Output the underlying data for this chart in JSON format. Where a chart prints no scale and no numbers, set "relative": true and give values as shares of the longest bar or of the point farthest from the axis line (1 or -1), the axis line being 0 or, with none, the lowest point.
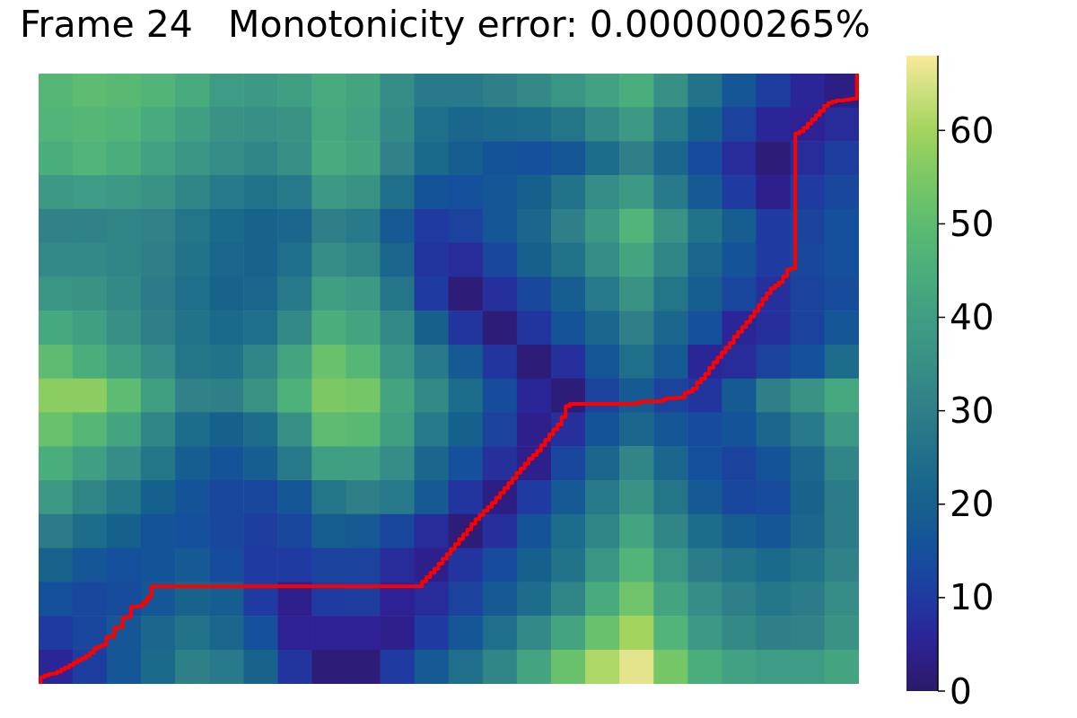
{
  "chart_data": [
    {
      "type": "heatmap",
      "title": "Frame 24   Monotonicity error: 0.000000265%",
      "categories": [
        null,
        null,
        null,
        null,
        null,
        null,
        null,
        null,
        null,
        null,
        null,
        null,
        null,
        null,
        null,
        null,
        null,
        null,
        null,
        null,
        null,
        null,
        null,
        null
      ],
      "y_categories": [
        null,
        null,
        null,
        null,
        null,
        null,
        null,
        null,
        null,
        null,
        null,
        null,
        null,
        null,
        null,
        null,
        null,
        null
      ],
      "cells": [
        [
          48,
          50,
          49,
          47,
          44,
          39,
          38,
          40,
          44,
          42,
          34,
          28,
          28,
          30,
          33,
          37,
          41,
          45,
          35,
          26,
          17,
          11,
          6,
          3
        ],
        [
          47,
          48,
          47,
          44,
          40,
          36,
          35,
          36,
          43,
          41,
          33,
          25,
          22,
          23,
          24,
          27,
          33,
          38,
          28,
          20,
          12,
          6,
          5,
          7
        ],
        [
          45,
          47,
          45,
          41,
          37,
          34,
          32,
          35,
          44,
          42,
          31,
          23,
          19,
          16,
          15,
          17,
          24,
          30,
          22,
          14,
          7,
          2,
          7,
          11
        ],
        [
          38,
          39,
          38,
          36,
          32,
          28,
          26,
          28,
          38,
          36,
          25,
          16,
          15,
          17,
          20,
          26,
          34,
          38,
          28,
          18,
          10,
          4,
          10,
          13
        ],
        [
          31,
          31,
          32,
          31,
          27,
          23,
          21,
          22,
          30,
          28,
          18,
          10,
          12,
          17,
          22,
          30,
          38,
          47,
          36,
          26,
          19,
          10,
          12,
          15
        ],
        [
          33,
          33,
          32,
          30,
          26,
          22,
          21,
          25,
          34,
          32,
          22,
          9,
          7,
          13,
          20,
          26,
          34,
          42,
          32,
          22,
          16,
          10,
          13,
          15
        ],
        [
          37,
          36,
          33,
          29,
          25,
          21,
          22,
          28,
          40,
          38,
          27,
          10,
          2,
          8,
          13,
          19,
          28,
          36,
          27,
          19,
          13,
          8,
          12,
          14
        ],
        [
          43,
          40,
          35,
          30,
          26,
          23,
          25,
          33,
          45,
          42,
          33,
          20,
          9,
          2,
          9,
          16,
          22,
          30,
          22,
          15,
          6,
          8,
          12,
          17
        ],
        [
          50,
          45,
          40,
          34,
          27,
          26,
          32,
          42,
          52,
          48,
          37,
          28,
          18,
          9,
          2,
          8,
          17,
          25,
          18,
          6,
          7,
          12,
          15,
          24
        ],
        [
          57,
          57,
          50,
          40,
          31,
          30,
          36,
          46,
          55,
          54,
          42,
          33,
          24,
          14,
          6,
          2,
          12,
          18,
          12,
          9,
          18,
          30,
          36,
          43
        ],
        [
          52,
          48,
          42,
          32,
          24,
          20,
          24,
          35,
          50,
          49,
          40,
          28,
          20,
          12,
          4,
          8,
          16,
          22,
          17,
          14,
          16,
          22,
          28,
          38
        ],
        [
          45,
          40,
          34,
          27,
          19,
          16,
          19,
          28,
          40,
          40,
          34,
          22,
          15,
          8,
          4,
          13,
          22,
          32,
          22,
          15,
          12,
          16,
          22,
          32
        ],
        [
          38,
          32,
          27,
          20,
          16,
          13,
          13,
          17,
          27,
          30,
          28,
          18,
          9,
          3,
          10,
          18,
          28,
          36,
          27,
          18,
          13,
          14,
          21,
          29
        ],
        [
          29,
          24,
          20,
          16,
          15,
          13,
          11,
          13,
          19,
          18,
          13,
          7,
          2,
          8,
          16,
          24,
          32,
          42,
          32,
          24,
          19,
          17,
          22,
          29
        ],
        [
          21,
          17,
          15,
          16,
          18,
          14,
          10,
          10,
          12,
          12,
          7,
          4,
          9,
          14,
          20,
          26,
          37,
          47,
          37,
          29,
          26,
          23,
          26,
          31
        ],
        [
          15,
          13,
          14,
          17,
          21,
          19,
          10,
          4,
          10,
          11,
          5,
          7,
          12,
          18,
          24,
          32,
          44,
          53,
          42,
          34,
          30,
          27,
          29,
          34
        ],
        [
          10,
          13,
          17,
          22,
          26,
          22,
          15,
          5,
          5,
          5,
          4,
          10,
          17,
          25,
          33,
          42,
          52,
          60,
          47,
          38,
          33,
          30,
          31,
          36
        ],
        [
          6,
          11,
          17,
          23,
          30,
          28,
          21,
          9,
          2,
          2,
          10,
          18,
          25,
          32,
          42,
          52,
          61,
          66,
          54,
          45,
          41,
          39,
          39,
          42
        ]
      ],
      "clim": [
        0,
        68
      ],
      "cticks": [
        0,
        10,
        20,
        30,
        40,
        50,
        60
      ]
    },
    {
      "type": "step",
      "relative": true,
      "color": "#ff0000",
      "categories": [
        null,
        null,
        null,
        null,
        null,
        null,
        null,
        null,
        null,
        null,
        null,
        null,
        null,
        null,
        null,
        null,
        null,
        null,
        null,
        null,
        null,
        null,
        null,
        null,
        null,
        null,
        null,
        null,
        null,
        null,
        null,
        null,
        null,
        null,
        null,
        null,
        null,
        null,
        null,
        null,
        null,
        null,
        null,
        null,
        null,
        null,
        null,
        null,
        null,
        null,
        null,
        null,
        null,
        null,
        null,
        null,
        null,
        null,
        null,
        null,
        null,
        null,
        null,
        null,
        null,
        null,
        null,
        null,
        null,
        null,
        null,
        null,
        null,
        null,
        null,
        null,
        null,
        null,
        null,
        null,
        null,
        null,
        null,
        null,
        null,
        null,
        null,
        null,
        null,
        null,
        null,
        null,
        null,
        null,
        null,
        null,
        null,
        null,
        null,
        null,
        null,
        null,
        null,
        null,
        null,
        null,
        null,
        null,
        null,
        null,
        null,
        null,
        null,
        null,
        null,
        null,
        null,
        null,
        null,
        null,
        null,
        null,
        null,
        null,
        null,
        null,
        null,
        null,
        null,
        null,
        null,
        null,
        null,
        null,
        null,
        null,
        null,
        null,
        null,
        null,
        null,
        null,
        null,
        null,
        null,
        null,
        null,
        null,
        null,
        null,
        null,
        null,
        null,
        null,
        null,
        null,
        null,
        null,
        null,
        null,
        null,
        null,
        null,
        null,
        null,
        null,
        null,
        null,
        null,
        null,
        null,
        null,
        null,
        null,
        null,
        null,
        null,
        null,
        null,
        null,
        null,
        null,
        null,
        null,
        null,
        null,
        null,
        null,
        null,
        null,
        null,
        null,
        null,
        null,
        null,
        null,
        null,
        null,
        null,
        null,
        null
      ],
      "values": [
        0,
        0.011,
        0.014,
        0.016,
        0.017,
        0.02,
        0.024,
        0.027,
        0.031,
        0.035,
        0.039,
        0.042,
        0.046,
        0.051,
        0.058,
        0.061,
        0.064,
        0.077,
        0.078,
        0.092,
        0.093,
        0.109,
        0.11,
        0.126,
        0.127,
        0.128,
        0.134,
        0.142,
        0.16,
        0.16,
        0.16,
        0.16,
        0.16,
        0.16,
        0.16,
        0.16,
        0.16,
        0.16,
        0.16,
        0.16,
        0.16,
        0.16,
        0.16,
        0.16,
        0.16,
        0.16,
        0.16,
        0.16,
        0.16,
        0.16,
        0.16,
        0.16,
        0.16,
        0.16,
        0.16,
        0.16,
        0.16,
        0.16,
        0.16,
        0.16,
        0.16,
        0.16,
        0.16,
        0.16,
        0.16,
        0.16,
        0.16,
        0.16,
        0.16,
        0.16,
        0.16,
        0.16,
        0.16,
        0.16,
        0.16,
        0.16,
        0.16,
        0.16,
        0.16,
        0.16,
        0.16,
        0.16,
        0.16,
        0.16,
        0.16,
        0.16,
        0.16,
        0.16,
        0.16,
        0.16,
        0.16,
        0.16,
        0.16,
        0.16,
        0.168,
        0.175,
        0.182,
        0.189,
        0.197,
        0.205,
        0.213,
        0.221,
        0.229,
        0.237,
        0.245,
        0.253,
        0.262,
        0.27,
        0.277,
        0.284,
        0.29,
        0.297,
        0.305,
        0.313,
        0.321,
        0.329,
        0.337,
        0.346,
        0.353,
        0.361,
        0.369,
        0.375,
        0.382,
        0.391,
        0.4,
        0.409,
        0.417,
        0.425,
        0.437,
        0.455,
        0.459,
        0.459,
        0.459,
        0.459,
        0.459,
        0.459,
        0.459,
        0.459,
        0.459,
        0.459,
        0.459,
        0.459,
        0.459,
        0.459,
        0.459,
        0.459,
        0.46,
        0.462,
        0.463,
        0.463,
        0.463,
        0.463,
        0.464,
        0.467,
        0.468,
        0.468,
        0.469,
        0.469,
        0.477,
        0.479,
        0.484,
        0.494,
        0.5,
        0.508,
        0.518,
        0.527,
        0.535,
        0.543,
        0.551,
        0.559,
        0.569,
        0.577,
        0.585,
        0.593,
        0.602,
        0.611,
        0.621,
        0.631,
        0.64,
        0.648,
        0.653,
        0.658,
        0.668,
        0.679,
        0.681,
        0.902,
        0.905,
        0.911,
        0.918,
        0.925,
        0.932,
        0.939,
        0.947,
        0.952,
        0.954,
        0.956,
        0.956,
        0.957,
        0.958,
        0.959,
        1
      ]
    }
  ]
}
